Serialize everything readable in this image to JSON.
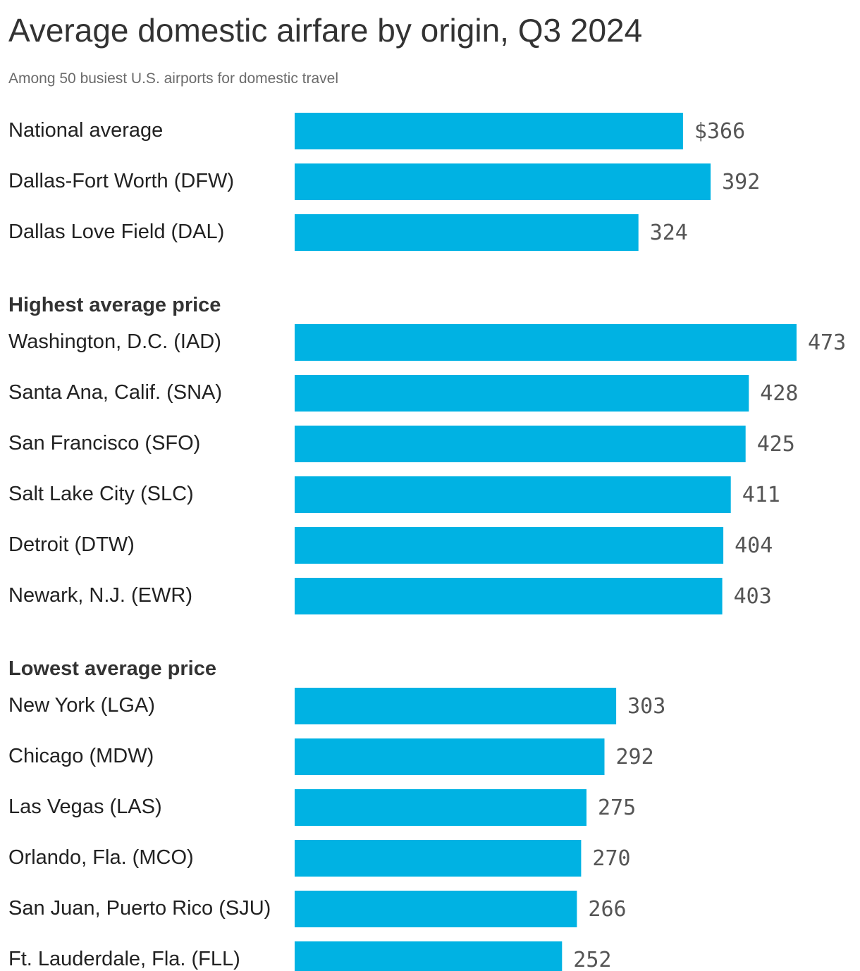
{
  "colors": {
    "bar": "#00b2e3",
    "text": "#222222",
    "value_text": "#555555",
    "subtitle": "#6b6b6b"
  },
  "chart_data": {
    "type": "bar",
    "orientation": "horizontal",
    "title": "Average domestic airfare by origin, Q3 2024",
    "subtitle": "Among 50 busiest U.S. airports for domestic travel",
    "value_prefix_first": "$",
    "xlim": [
      0,
      473
    ],
    "grid": false,
    "groups": [
      {
        "heading": "",
        "rows": [
          {
            "label": "National average",
            "value": 366,
            "value_text": "$366"
          },
          {
            "label": "Dallas-Fort Worth (DFW)",
            "value": 392,
            "value_text": "392"
          },
          {
            "label": "Dallas Love Field (DAL)",
            "value": 324,
            "value_text": "324"
          }
        ]
      },
      {
        "heading": "Highest average price",
        "rows": [
          {
            "label": "Washington, D.C. (IAD)",
            "value": 473,
            "value_text": "473"
          },
          {
            "label": "Santa Ana, Calif. (SNA)",
            "value": 428,
            "value_text": "428"
          },
          {
            "label": "San Francisco (SFO)",
            "value": 425,
            "value_text": "425"
          },
          {
            "label": "Salt Lake City (SLC)",
            "value": 411,
            "value_text": "411"
          },
          {
            "label": "Detroit (DTW)",
            "value": 404,
            "value_text": "404"
          },
          {
            "label": "Newark, N.J. (EWR)",
            "value": 403,
            "value_text": "403"
          }
        ]
      },
      {
        "heading": "Lowest average price",
        "rows": [
          {
            "label": "New York (LGA)",
            "value": 303,
            "value_text": "303"
          },
          {
            "label": "Chicago (MDW)",
            "value": 292,
            "value_text": "292"
          },
          {
            "label": "Las Vegas (LAS)",
            "value": 275,
            "value_text": "275"
          },
          {
            "label": "Orlando, Fla. (MCO)",
            "value": 270,
            "value_text": "270"
          },
          {
            "label": "San Juan, Puerto Rico (SJU)",
            "value": 266,
            "value_text": "266"
          },
          {
            "label": "Ft. Lauderdale, Fla. (FLL)",
            "value": 252,
            "value_text": "252"
          }
        ]
      }
    ]
  }
}
